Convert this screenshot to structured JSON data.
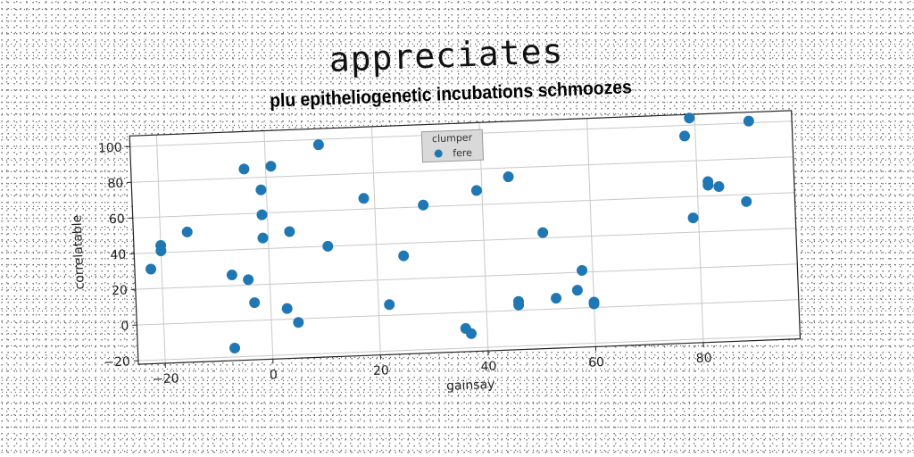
{
  "page": {
    "title": "appreciates"
  },
  "chart_data": {
    "type": "scatter",
    "title": "plu epitheliogenetic incubations schmoozes",
    "xlabel": "gainsay",
    "ylabel": "correlatable",
    "xlim": [
      -25,
      98
    ],
    "ylim": [
      -22,
      106
    ],
    "xticks": [
      -20,
      0,
      20,
      40,
      60,
      80
    ],
    "yticks": [
      -20,
      0,
      20,
      40,
      60,
      80,
      100
    ],
    "grid": true,
    "legend": {
      "title": "clumper",
      "placement": "top-center",
      "entries": [
        "fere"
      ]
    },
    "series": [
      {
        "name": "fere",
        "color": "#1f77b4",
        "points": [
          [
            -22,
            31
          ],
          [
            -20,
            44
          ],
          [
            -20,
            41
          ],
          [
            -15,
            51
          ],
          [
            -7,
            26
          ],
          [
            -7,
            -15
          ],
          [
            -4,
            85
          ],
          [
            -4,
            23
          ],
          [
            -3,
            10
          ],
          [
            -1,
            59
          ],
          [
            -1,
            46
          ],
          [
            -1,
            73
          ],
          [
            1,
            86
          ],
          [
            3,
            6
          ],
          [
            4,
            49
          ],
          [
            5,
            -2
          ],
          [
            10,
            97
          ],
          [
            11,
            40
          ],
          [
            18,
            66
          ],
          [
            22,
            6
          ],
          [
            25,
            33
          ],
          [
            29,
            61
          ],
          [
            36,
            -9
          ],
          [
            37,
            -12
          ],
          [
            39,
            68
          ],
          [
            45,
            75
          ],
          [
            46,
            5
          ],
          [
            46,
            3
          ],
          [
            51,
            43
          ],
          [
            53,
            6
          ],
          [
            57,
            10
          ],
          [
            58,
            21
          ],
          [
            60,
            3
          ],
          [
            60,
            2
          ],
          [
            78,
            94
          ],
          [
            79,
            104
          ],
          [
            79,
            48
          ],
          [
            82,
            66
          ],
          [
            82,
            68
          ],
          [
            84,
            65
          ],
          [
            89,
            56
          ],
          [
            90,
            101
          ]
        ]
      }
    ]
  }
}
